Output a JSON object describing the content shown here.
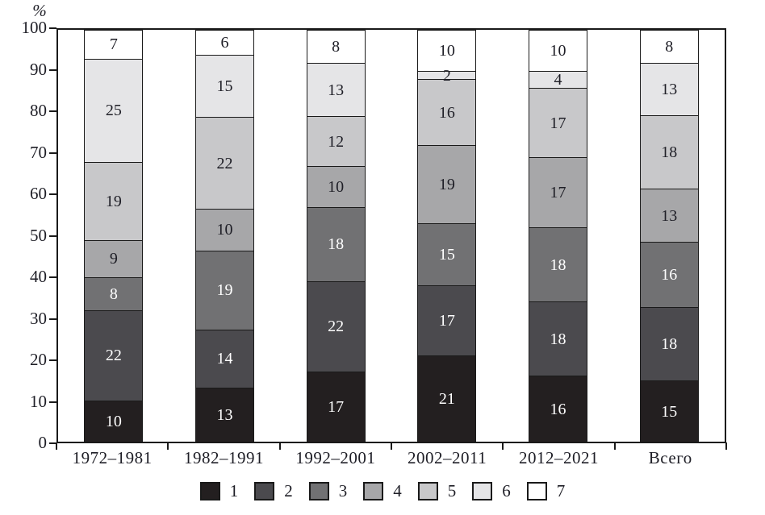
{
  "page": {
    "background": "#ffffff"
  },
  "y_axis": {
    "unit": "%",
    "ticks": [
      100,
      90,
      80,
      70,
      60,
      50,
      40,
      30,
      20,
      10,
      0
    ]
  },
  "chart_data": {
    "type": "bar",
    "stacked": true,
    "title": "",
    "xlabel": "",
    "ylabel": "%",
    "ylim": [
      0,
      100
    ],
    "grid": false,
    "legend_position": "bottom",
    "categories": [
      "1972–1981",
      "1982–1991",
      "1992–2001",
      "2002–2011",
      "2012–2021",
      "Всего"
    ],
    "series": [
      {
        "name": "1",
        "color": "#231f20",
        "label_color": "#ffffff",
        "values": [
          10,
          13,
          17,
          21,
          16,
          15
        ]
      },
      {
        "name": "2",
        "color": "#4b4a4e",
        "label_color": "#ffffff",
        "values": [
          22,
          14,
          22,
          17,
          18,
          18
        ]
      },
      {
        "name": "3",
        "color": "#717173",
        "label_color": "#ffffff",
        "values": [
          8,
          19,
          18,
          15,
          18,
          16
        ]
      },
      {
        "name": "4",
        "color": "#a7a7a9",
        "label_color": "#1e1e26",
        "values": [
          9,
          10,
          10,
          19,
          17,
          13
        ]
      },
      {
        "name": "5",
        "color": "#c8c8ca",
        "label_color": "#1e1e26",
        "values": [
          19,
          22,
          12,
          16,
          17,
          18
        ]
      },
      {
        "name": "6",
        "color": "#e5e5e7",
        "label_color": "#1e1e26",
        "values": [
          25,
          15,
          13,
          2,
          4,
          13
        ]
      },
      {
        "name": "7",
        "color": "#ffffff",
        "label_color": "#1e1e26",
        "values": [
          7,
          6,
          8,
          10,
          10,
          8
        ]
      }
    ],
    "legend": [
      "1",
      "2",
      "3",
      "4",
      "5",
      "6",
      "7"
    ]
  },
  "colors": {
    "axis": "#1a1a1a",
    "text": "#1e1e26"
  }
}
